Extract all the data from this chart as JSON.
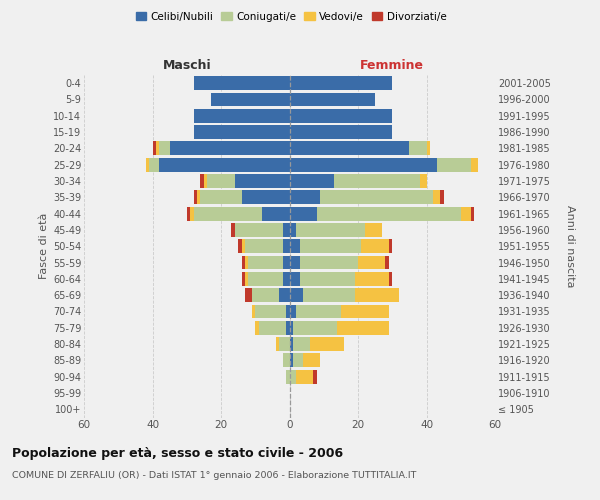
{
  "age_groups": [
    "100+",
    "95-99",
    "90-94",
    "85-89",
    "80-84",
    "75-79",
    "70-74",
    "65-69",
    "60-64",
    "55-59",
    "50-54",
    "45-49",
    "40-44",
    "35-39",
    "30-34",
    "25-29",
    "20-24",
    "15-19",
    "10-14",
    "5-9",
    "0-4"
  ],
  "birth_years": [
    "≤ 1905",
    "1906-1910",
    "1911-1915",
    "1916-1920",
    "1921-1925",
    "1926-1930",
    "1931-1935",
    "1936-1940",
    "1941-1945",
    "1946-1950",
    "1951-1955",
    "1956-1960",
    "1961-1965",
    "1966-1970",
    "1971-1975",
    "1976-1980",
    "1981-1985",
    "1986-1990",
    "1991-1995",
    "1996-2000",
    "2001-2005"
  ],
  "male_celibi": [
    0,
    0,
    0,
    0,
    0,
    1,
    1,
    3,
    2,
    2,
    2,
    2,
    8,
    14,
    16,
    38,
    35,
    28,
    28,
    23,
    28
  ],
  "male_coniugati": [
    0,
    0,
    1,
    2,
    3,
    8,
    9,
    8,
    10,
    10,
    11,
    14,
    20,
    12,
    8,
    3,
    3,
    0,
    0,
    0,
    0
  ],
  "male_vedovi": [
    0,
    0,
    0,
    0,
    1,
    1,
    1,
    0,
    1,
    1,
    1,
    0,
    1,
    1,
    1,
    1,
    1,
    0,
    0,
    0,
    0
  ],
  "male_divorziati": [
    0,
    0,
    0,
    0,
    0,
    0,
    0,
    2,
    1,
    1,
    1,
    1,
    1,
    1,
    1,
    0,
    1,
    0,
    0,
    0,
    0
  ],
  "female_nubili": [
    0,
    0,
    0,
    1,
    1,
    1,
    2,
    4,
    3,
    3,
    3,
    2,
    8,
    9,
    13,
    43,
    35,
    30,
    30,
    25,
    30
  ],
  "female_coniugate": [
    0,
    0,
    2,
    3,
    5,
    13,
    13,
    15,
    16,
    17,
    18,
    20,
    42,
    33,
    25,
    10,
    5,
    0,
    0,
    0,
    0
  ],
  "female_vedove": [
    0,
    0,
    5,
    5,
    10,
    15,
    14,
    13,
    10,
    8,
    8,
    5,
    3,
    2,
    2,
    2,
    1,
    0,
    0,
    0,
    0
  ],
  "female_divorziate": [
    0,
    0,
    1,
    0,
    0,
    0,
    0,
    0,
    1,
    1,
    1,
    0,
    1,
    1,
    0,
    0,
    0,
    0,
    0,
    0,
    0
  ],
  "color_celibi": "#3a6ca8",
  "color_coniugati": "#b8cc96",
  "color_vedovi": "#f5c242",
  "color_divorziati": "#c0392b",
  "xlim": 60,
  "bg_color": "#f0f0f0",
  "grid_color": "#cccccc",
  "title": "Popolazione per età, sesso e stato civile - 2006",
  "subtitle": "COMUNE DI ZERFALIU (OR) - Dati ISTAT 1° gennaio 2006 - Elaborazione TUTTITALIA.IT",
  "ylabel_left": "Fasce di età",
  "ylabel_right": "Anni di nascita",
  "header_left": "Maschi",
  "header_right": "Femmine"
}
